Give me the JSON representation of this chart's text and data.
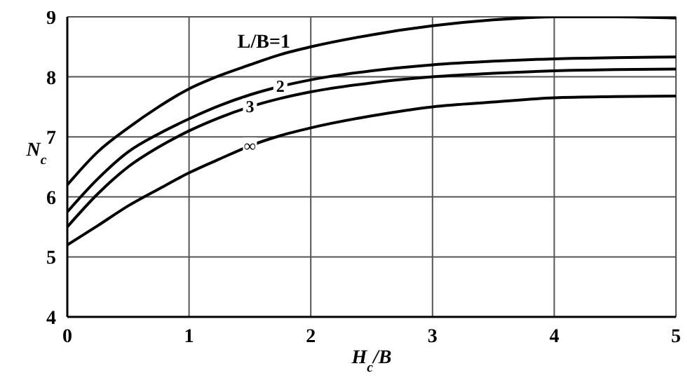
{
  "chart_data": {
    "type": "line",
    "xlabel": "H$_{c}$/B",
    "ylabel": "N$_{c}$",
    "x": [
      0,
      0.25,
      0.5,
      0.75,
      1,
      1.25,
      1.5,
      1.75,
      2,
      2.5,
      3,
      3.5,
      4,
      4.5,
      5
    ],
    "series": [
      {
        "name": "L/B=1",
        "color": "#000000",
        "values": [
          6.2,
          6.75,
          7.15,
          7.5,
          7.8,
          8.02,
          8.2,
          8.37,
          8.5,
          8.7,
          8.85,
          8.95,
          9.0,
          9.0,
          8.98
        ]
      },
      {
        "name": "2",
        "color": "#000000",
        "values": [
          5.75,
          6.3,
          6.75,
          7.05,
          7.3,
          7.52,
          7.7,
          7.84,
          7.95,
          8.1,
          8.2,
          8.26,
          8.3,
          8.32,
          8.33
        ]
      },
      {
        "name": "3",
        "color": "#000000",
        "values": [
          5.5,
          6.05,
          6.5,
          6.83,
          7.1,
          7.32,
          7.5,
          7.64,
          7.75,
          7.9,
          8.0,
          8.06,
          8.1,
          8.12,
          8.13
        ]
      },
      {
        "name": "∞",
        "color": "#000000",
        "values": [
          5.2,
          5.52,
          5.85,
          6.13,
          6.4,
          6.63,
          6.85,
          7.02,
          7.15,
          7.35,
          7.5,
          7.58,
          7.65,
          7.67,
          7.68
        ]
      }
    ],
    "xlim": [
      0,
      5
    ],
    "xticks": [
      0,
      1,
      2,
      3,
      4,
      5
    ],
    "ylim": [
      4,
      9
    ],
    "yticks": [
      4,
      5,
      6,
      7,
      8,
      9
    ],
    "grid": true,
    "marker": "none",
    "line_style": "solid"
  }
}
